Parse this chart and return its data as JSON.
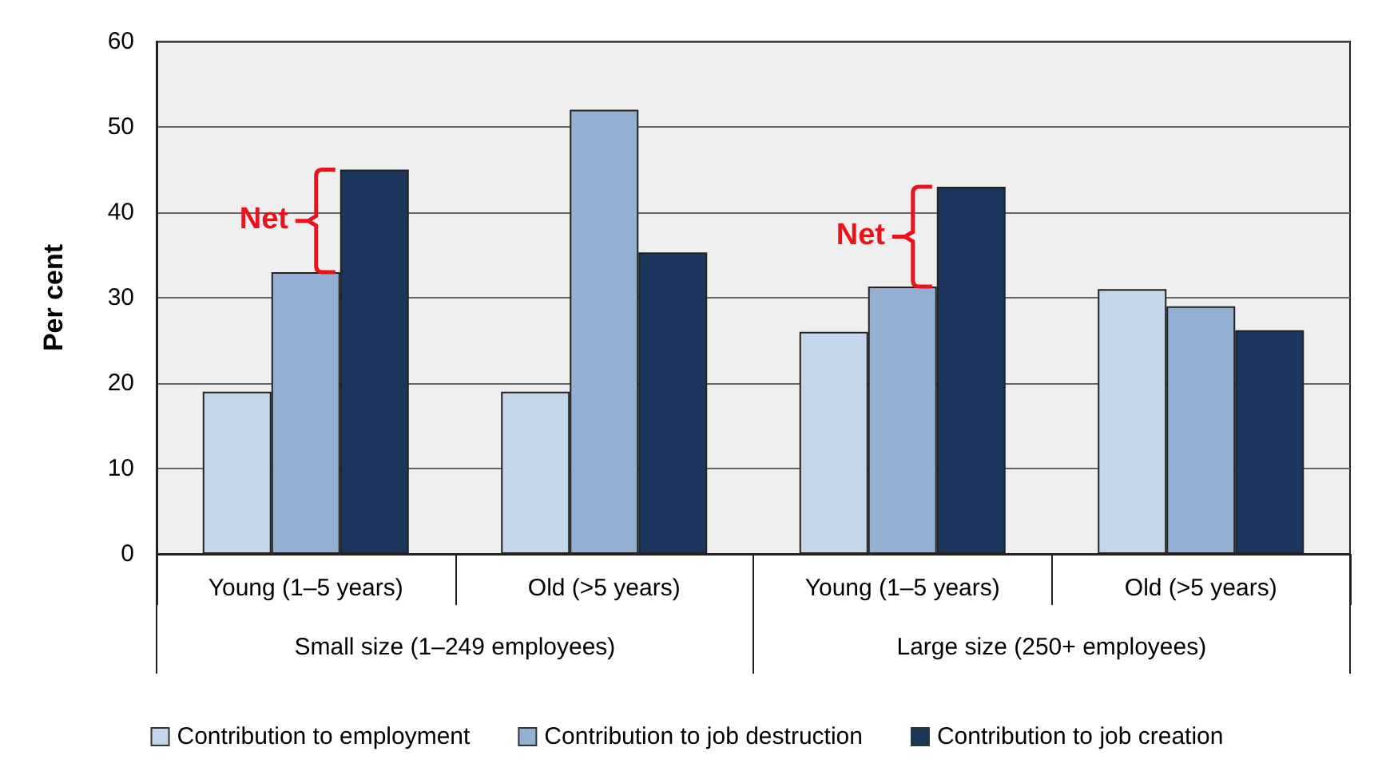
{
  "chart_data": {
    "type": "bar",
    "ylabel": "Per cent",
    "categories": [
      "Young (1–5 years)",
      "Old (>5 years)",
      "Young (1–5 years)",
      "Old (>5 years)"
    ],
    "series": [
      {
        "name": "Contribution to employment",
        "color": "#c5d5ea",
        "values": [
          19,
          19,
          26,
          31
        ]
      },
      {
        "name": "Contribution to job destruction",
        "color": "#93b0d4",
        "values": [
          33,
          52,
          31.3,
          29
        ]
      },
      {
        "name": "Contribution to job creation",
        "color": "#1b355c",
        "values": [
          45,
          35.3,
          43,
          26.2
        ]
      }
    ],
    "ylim": [
      0,
      60
    ],
    "yticks": [
      0,
      10,
      20,
      30,
      40,
      50,
      60
    ],
    "grid": "y",
    "legend": "bottom",
    "annotations": [
      "Small size (1–249 employees)",
      "Large size (250+ employees)",
      "Net",
      "Net"
    ]
  }
}
